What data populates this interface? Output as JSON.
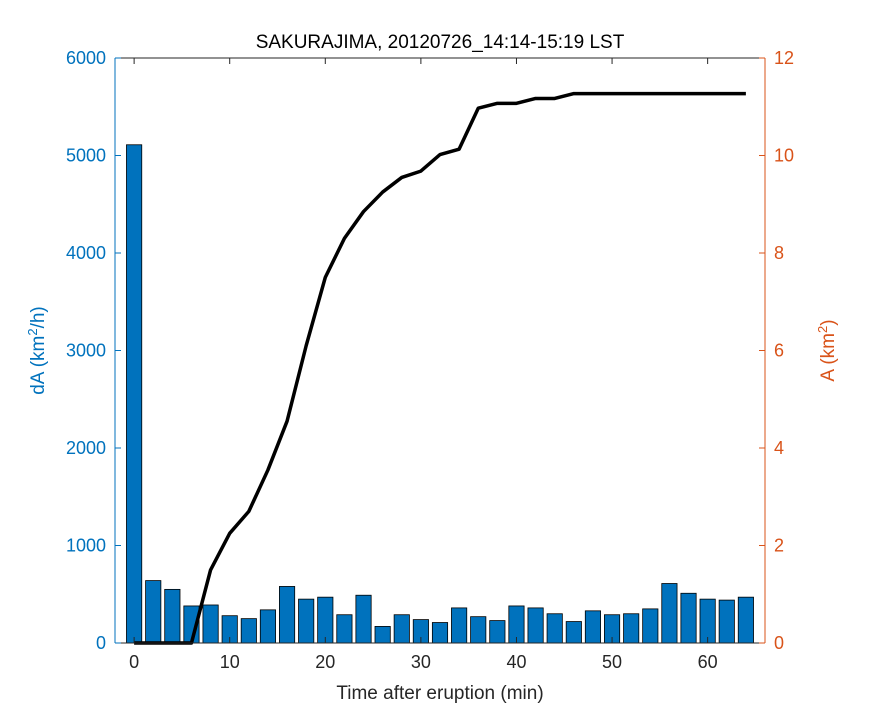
{
  "chart_data": {
    "type": "bar+line",
    "title": "SAKURAJIMA, 20120726_14:14-15:19 LST",
    "xlabel": "Time after eruption (min)",
    "ylabel_left": "dA (km",
    "ylabel_left_sup": "2",
    "ylabel_left_tail": "/h)",
    "ylabel_right": "A (km",
    "ylabel_right_sup": "2",
    "ylabel_right_tail": ")",
    "xlim": [
      -2,
      66
    ],
    "x_ticks": [
      0,
      10,
      20,
      30,
      40,
      50,
      60
    ],
    "ylim_left": [
      0,
      6000
    ],
    "y_ticks_left": [
      0,
      1000,
      2000,
      3000,
      4000,
      5000,
      6000
    ],
    "ylim_right": [
      0,
      12
    ],
    "y_ticks_right": [
      0,
      2,
      4,
      6,
      8,
      10,
      12
    ],
    "colors": {
      "bars": "#0072BD",
      "left_axis": "#0072BD",
      "right_axis": "#D95319",
      "line": "#000000"
    },
    "bars": {
      "axis": "left",
      "x": [
        0,
        2,
        4,
        6,
        8,
        10,
        12,
        14,
        16,
        18,
        20,
        22,
        24,
        26,
        28,
        30,
        32,
        34,
        36,
        38,
        40,
        42,
        44,
        46,
        48,
        50,
        52,
        54,
        56,
        58,
        60,
        62,
        64
      ],
      "values": [
        5110,
        640,
        550,
        380,
        390,
        280,
        250,
        340,
        580,
        450,
        470,
        290,
        490,
        170,
        290,
        240,
        210,
        360,
        270,
        230,
        380,
        360,
        300,
        220,
        330,
        290,
        300,
        350,
        610,
        510,
        450,
        440,
        470
      ]
    },
    "line": {
      "axis": "right",
      "x": [
        0,
        2,
        4,
        6,
        8,
        10,
        12,
        14,
        16,
        18,
        20,
        22,
        24,
        26,
        28,
        30,
        32,
        34,
        36,
        38,
        40,
        42,
        44,
        46,
        48,
        50,
        52,
        54,
        56,
        58,
        60,
        62,
        64
      ],
      "values": [
        0,
        0,
        0,
        0,
        1.5,
        2.25,
        2.7,
        3.55,
        4.55,
        6.1,
        7.5,
        8.3,
        8.85,
        9.25,
        9.55,
        9.68,
        10.02,
        10.13,
        10.97,
        11.07,
        11.07,
        11.17,
        11.17,
        11.27,
        11.27,
        11.27,
        11.27,
        11.27,
        11.27,
        11.27,
        11.27,
        11.27,
        11.27
      ]
    }
  }
}
